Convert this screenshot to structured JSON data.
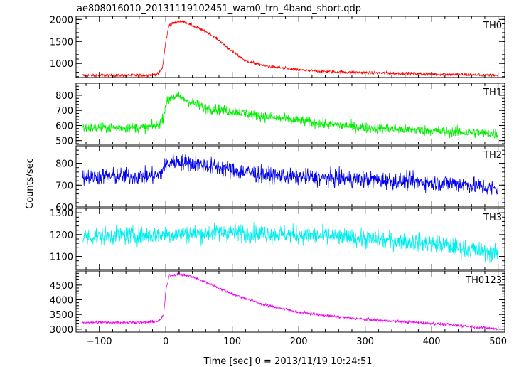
{
  "chart_data": {
    "type": "line",
    "title": "ae808016010_20131119102451_wam0_trn_4band_short.qdp",
    "xlabel": "Time [sec] 0 = 2013/11/19 10:24:51",
    "ylabel": "Counts/sec",
    "xlim": [
      -135,
      510
    ],
    "xticks": [
      -100,
      0,
      100,
      200,
      300,
      400,
      500
    ],
    "panels": [
      {
        "name": "TH0",
        "color": "#ff0000",
        "ylim": [
          680,
          2070
        ],
        "yticks": [
          1000,
          1500,
          2000
        ],
        "curve": [
          [
            -125,
            730
          ],
          [
            -30,
            730
          ],
          [
            -12,
            760
          ],
          [
            -5,
            900
          ],
          [
            0,
            1500
          ],
          [
            5,
            1880
          ],
          [
            20,
            1960
          ],
          [
            30,
            1940
          ],
          [
            40,
            1860
          ],
          [
            60,
            1730
          ],
          [
            80,
            1530
          ],
          [
            100,
            1270
          ],
          [
            120,
            1060
          ],
          [
            150,
            940
          ],
          [
            200,
            850
          ],
          [
            250,
            810
          ],
          [
            300,
            790
          ],
          [
            400,
            760
          ],
          [
            500,
            730
          ]
        ],
        "noise": 25
      },
      {
        "name": "TH1",
        "color": "#00ee00",
        "ylim": [
          475,
          880
        ],
        "yticks": [
          500,
          600,
          700,
          800
        ],
        "curve": [
          [
            -125,
            585
          ],
          [
            -30,
            585
          ],
          [
            -12,
            600
          ],
          [
            -5,
            640
          ],
          [
            0,
            740
          ],
          [
            8,
            790
          ],
          [
            20,
            790
          ],
          [
            40,
            750
          ],
          [
            60,
            715
          ],
          [
            100,
            695
          ],
          [
            140,
            665
          ],
          [
            200,
            630
          ],
          [
            250,
            605
          ],
          [
            300,
            585
          ],
          [
            400,
            565
          ],
          [
            500,
            545
          ]
        ],
        "noise": 25
      },
      {
        "name": "TH2",
        "color": "#0000ee",
        "ylim": [
          600,
          880
        ],
        "yticks": [
          600,
          700,
          800
        ],
        "curve": [
          [
            -125,
            740
          ],
          [
            -30,
            740
          ],
          [
            -10,
            745
          ],
          [
            0,
            790
          ],
          [
            10,
            810
          ],
          [
            40,
            800
          ],
          [
            80,
            780
          ],
          [
            150,
            745
          ],
          [
            250,
            730
          ],
          [
            350,
            720
          ],
          [
            450,
            705
          ],
          [
            500,
            680
          ]
        ],
        "noise": 28
      },
      {
        "name": "TH3",
        "color": "#00eeee",
        "ylim": [
          1040,
          1320
        ],
        "yticks": [
          1100,
          1200,
          1300
        ],
        "curve": [
          [
            -125,
            1190
          ],
          [
            0,
            1200
          ],
          [
            100,
            1210
          ],
          [
            200,
            1200
          ],
          [
            300,
            1180
          ],
          [
            400,
            1160
          ],
          [
            450,
            1135
          ],
          [
            500,
            1110
          ]
        ],
        "noise": 30
      },
      {
        "name": "TH0123",
        "color": "#ee00ee",
        "ylim": [
          2900,
          4980
        ],
        "yticks": [
          3000,
          3500,
          4000,
          4500
        ],
        "curve": [
          [
            -125,
            3230
          ],
          [
            -30,
            3230
          ],
          [
            -10,
            3280
          ],
          [
            -3,
            3500
          ],
          [
            0,
            4300
          ],
          [
            5,
            4830
          ],
          [
            20,
            4880
          ],
          [
            40,
            4780
          ],
          [
            60,
            4600
          ],
          [
            100,
            4200
          ],
          [
            150,
            3820
          ],
          [
            200,
            3580
          ],
          [
            250,
            3440
          ],
          [
            300,
            3330
          ],
          [
            400,
            3200
          ],
          [
            500,
            3010
          ]
        ],
        "noise": 35
      }
    ]
  }
}
